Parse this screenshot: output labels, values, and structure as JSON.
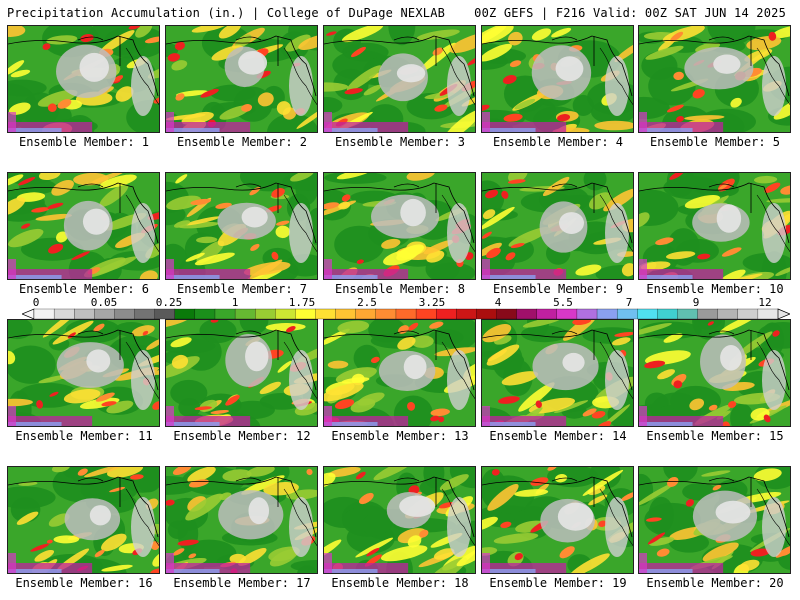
{
  "header": {
    "title": "Precipitation Accumulation (in.) | College of DuPage NEXLAB",
    "run_info": "00Z GEFS | F216 Valid: 00Z SAT JUN 14 2025"
  },
  "members": [
    {
      "label": "Ensemble Member: 1"
    },
    {
      "label": "Ensemble Member: 2"
    },
    {
      "label": "Ensemble Member: 3"
    },
    {
      "label": "Ensemble Member: 4"
    },
    {
      "label": "Ensemble Member: 5"
    },
    {
      "label": "Ensemble Member: 6"
    },
    {
      "label": "Ensemble Member: 7"
    },
    {
      "label": "Ensemble Member: 8"
    },
    {
      "label": "Ensemble Member: 9"
    },
    {
      "label": "Ensemble Member: 10"
    },
    {
      "label": "Ensemble Member: 11"
    },
    {
      "label": "Ensemble Member: 12"
    },
    {
      "label": "Ensemble Member: 13"
    },
    {
      "label": "Ensemble Member: 14"
    },
    {
      "label": "Ensemble Member: 15"
    },
    {
      "label": "Ensemble Member: 16"
    },
    {
      "label": "Ensemble Member: 17"
    },
    {
      "label": "Ensemble Member: 18"
    },
    {
      "label": "Ensemble Member: 19"
    },
    {
      "label": "Ensemble Member: 20"
    }
  ],
  "legend": {
    "tick_labels": [
      "0",
      "0.05",
      "0.25",
      "1",
      "1.75",
      "2.5",
      "3.25",
      "4",
      "5.5",
      "7",
      "9",
      "12"
    ],
    "colors": [
      "#f2f2f2",
      "#d9d9d9",
      "#bfbfbf",
      "#a6a6a6",
      "#8c8c8c",
      "#737373",
      "#5a5a5a",
      "#0a7a0a",
      "#1b8f1b",
      "#3aa62a",
      "#66b832",
      "#99cc33",
      "#cce633",
      "#ffff33",
      "#ffe033",
      "#ffc433",
      "#ffa833",
      "#ff8c33",
      "#ff6a2a",
      "#ff4422",
      "#ee2020",
      "#cc1616",
      "#aa0e0e",
      "#880a1a",
      "#a0106a",
      "#c020a0",
      "#d838c8",
      "#b070e0",
      "#8aa0f0",
      "#70c0f0",
      "#50e0f0",
      "#40d0d0",
      "#60c0b0",
      "#9a9a9a",
      "#b4b4b4",
      "#cecece",
      "#e6e6e6"
    ]
  }
}
